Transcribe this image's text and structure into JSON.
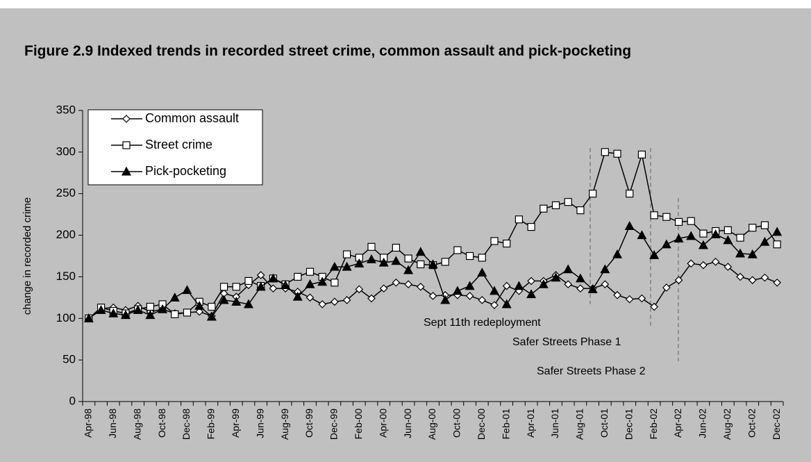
{
  "chart_data": {
    "type": "line",
    "title": "Figure 2.9  Indexed trends in recorded street crime, common assault and pick-pocketing",
    "y_label": "change in recorded crime",
    "categories": [
      "Apr-98",
      null,
      "Jun-98",
      null,
      "Aug-98",
      null,
      "Oct-98",
      null,
      "Dec-98",
      null,
      "Feb-99",
      null,
      "Apr-99",
      null,
      "Jun-99",
      null,
      "Aug-99",
      null,
      "Oct-99",
      null,
      "Dec-99",
      null,
      "Feb-00",
      null,
      "Apr-00",
      null,
      "Jun-00",
      null,
      "Aug-00",
      null,
      "Oct-00",
      null,
      "Dec-00",
      null,
      "Feb-01",
      null,
      "Apr-01",
      null,
      "Jun-01",
      null,
      "Aug-01",
      null,
      "Oct-01",
      null,
      "Dec-01",
      null,
      "Feb-02",
      null,
      "Apr-02",
      null,
      "Jun-02",
      null,
      "Aug-02",
      null,
      "Oct-02",
      null,
      "Dec-02"
    ],
    "series": [
      {
        "name": "Common assault",
        "color": "#000000",
        "marker": "diamond",
        "marker_fill": "#ffffff",
        "values": [
          100,
          112,
          113,
          110,
          115,
          108,
          111,
          106,
          107,
          108,
          103,
          130,
          126,
          140,
          152,
          136,
          136,
          132,
          125,
          117,
          120,
          122,
          135,
          124,
          136,
          143,
          141,
          138,
          127,
          128,
          128,
          127,
          122,
          116,
          139,
          133,
          145,
          145,
          152,
          141,
          136,
          136,
          141,
          128,
          123,
          124,
          114,
          137,
          146,
          166,
          164,
          168,
          162,
          150,
          146,
          149,
          143
        ]
      },
      {
        "name": "Street crime",
        "color": "#000000",
        "marker": "square",
        "marker_fill": "#ffffff",
        "values": [
          100,
          113,
          109,
          106,
          111,
          114,
          117,
          105,
          107,
          120,
          114,
          138,
          138,
          145,
          139,
          148,
          141,
          150,
          156,
          150,
          143,
          177,
          173,
          186,
          173,
          185,
          172,
          165,
          164,
          168,
          182,
          175,
          173,
          193,
          190,
          219,
          210,
          232,
          236,
          240,
          230,
          250,
          300,
          298,
          250,
          297,
          224,
          222,
          216,
          217,
          202,
          205,
          206,
          197,
          209,
          212,
          189
        ]
      },
      {
        "name": "Pick-pocketing",
        "color": "#000000",
        "marker": "triangle",
        "marker_fill": "#000000",
        "values": [
          100,
          110,
          106,
          104,
          110,
          104,
          111,
          125,
          134,
          115,
          102,
          122,
          120,
          117,
          138,
          148,
          140,
          126,
          141,
          144,
          162,
          162,
          166,
          171,
          167,
          169,
          158,
          180,
          165,
          122,
          133,
          139,
          155,
          133,
          117,
          139,
          129,
          141,
          149,
          159,
          148,
          135,
          159,
          177,
          211,
          200,
          176,
          189,
          196,
          199,
          188,
          201,
          194,
          178,
          177,
          192,
          204
        ]
      }
    ],
    "ylim": [
      0,
      350
    ],
    "yticks": [
      0,
      50,
      100,
      150,
      200,
      250,
      300,
      350
    ],
    "grid": false,
    "legend": "upper left",
    "annotations": [
      "Sept 11th redeployment",
      "Safer Streets Phase 1",
      "Safer Streets Phase 2"
    ]
  }
}
